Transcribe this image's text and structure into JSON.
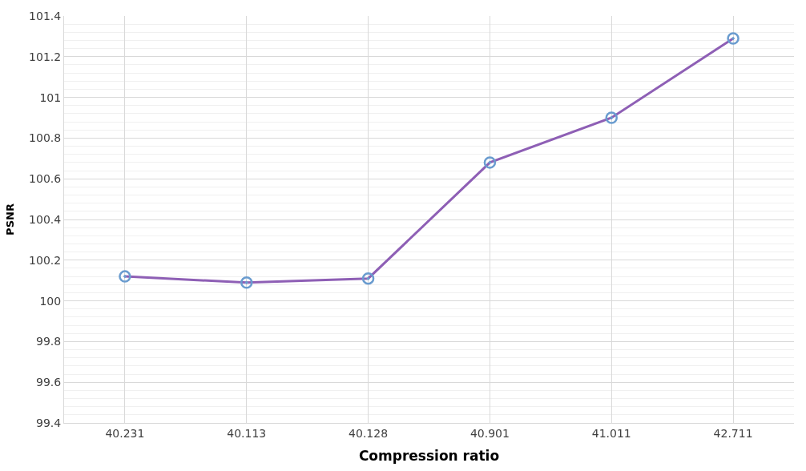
{
  "chart_data": {
    "type": "line",
    "xlabel": "Compression ratio",
    "ylabel": "PSNR",
    "categories": [
      "40.231",
      "40.113",
      "40.128",
      "40.901",
      "41.011",
      "42.711"
    ],
    "series": [
      {
        "color": "#8e5fb5",
        "values": [
          100.12,
          100.09,
          100.11,
          100.68,
          100.9,
          101.29
        ]
      }
    ],
    "ylim": [
      99.4,
      101.4
    ],
    "yticks": [
      99.4,
      99.6,
      99.8,
      100,
      100.2,
      100.4,
      100.6,
      100.8,
      101,
      101.2,
      101.4
    ],
    "grid": true,
    "marker": "circle",
    "line_style": "solid"
  }
}
